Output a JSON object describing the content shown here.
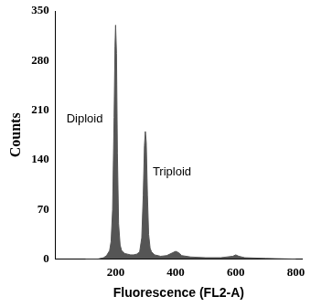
{
  "chart_data": {
    "type": "area",
    "x_label": "Fluorescence (FL2-A)",
    "y_label": "Counts",
    "annotations": [
      "Diploid",
      "Triploid"
    ],
    "x": [
      100,
      140,
      160,
      170,
      180,
      185,
      190,
      195,
      198,
      200,
      203,
      206,
      210,
      215,
      220,
      230,
      240,
      250,
      260,
      270,
      280,
      287,
      292,
      296,
      299,
      302,
      306,
      310,
      315,
      320,
      330,
      350,
      370,
      390,
      400,
      410,
      420,
      450,
      500,
      550,
      590,
      600,
      610,
      630,
      700,
      800
    ],
    "values": [
      0,
      0,
      2,
      5,
      12,
      25,
      70,
      200,
      300,
      330,
      290,
      150,
      50,
      20,
      12,
      8,
      7,
      6,
      6,
      7,
      10,
      30,
      90,
      160,
      180,
      165,
      90,
      35,
      15,
      10,
      6,
      4,
      5,
      9,
      11,
      9,
      5,
      3,
      2,
      2,
      4,
      6,
      4,
      2,
      1,
      0
    ],
    "color": "#555555",
    "xlim": [
      0,
      820
    ],
    "xticks": [
      200,
      400,
      600,
      800
    ],
    "ylim": [
      0,
      350
    ],
    "yticks": [
      0,
      70,
      140,
      210,
      280,
      350
    ],
    "grid": false
  }
}
